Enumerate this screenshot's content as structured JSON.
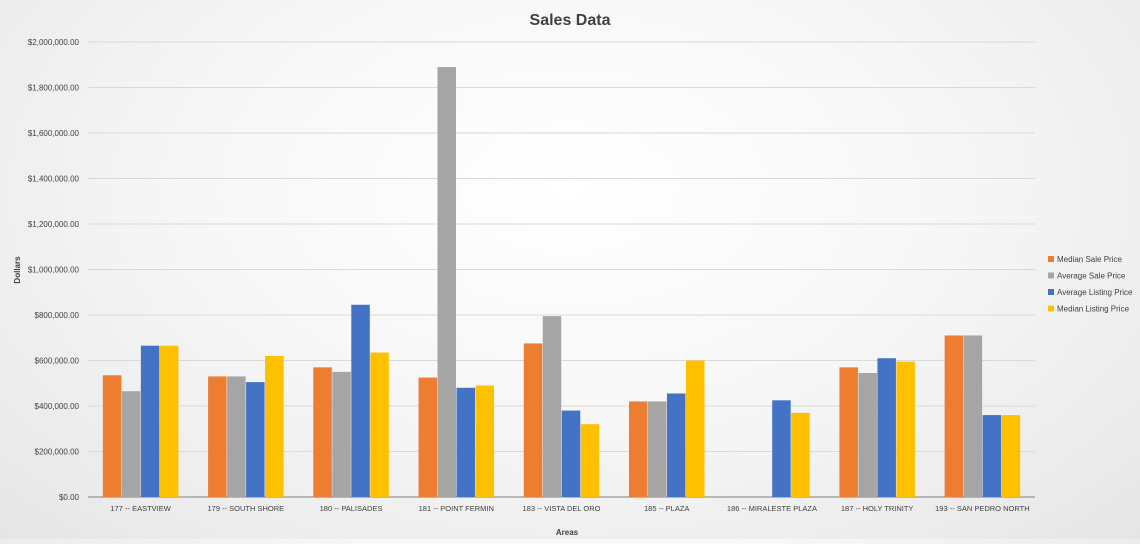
{
  "chart_data": {
    "type": "bar",
    "title": "Sales Data",
    "xlabel": "Areas",
    "ylabel": "Dollars",
    "ylim": [
      0,
      2000000
    ],
    "y_ticks": [
      0,
      200000,
      400000,
      600000,
      800000,
      1000000,
      1200000,
      1400000,
      1600000,
      1800000,
      2000000
    ],
    "y_tick_labels": [
      "$0.00",
      "$200,000.00",
      "$400,000.00",
      "$600,000.00",
      "$800,000.00",
      "$1,000,000.00",
      "$1,200,000.00",
      "$1,400,000.00",
      "$1,600,000.00",
      "$1,800,000.00",
      "$2,000,000.00"
    ],
    "grid": true,
    "legend_position": "right",
    "categories": [
      "177 -- EASTVIEW",
      "179 -- SOUTH SHORE",
      "180 -- PALISADES",
      "181 -- POINT FERMIN",
      "183 -- VISTA DEL ORO",
      "185 -- PLAZA",
      "186 -- MIRALESTE PLAZA",
      "187 -- HOLY TRINITY",
      "193 -- SAN PEDRO NORTH"
    ],
    "series": [
      {
        "name": "Median Sale Price",
        "color": "#ED7D31",
        "values": [
          535000,
          530000,
          570000,
          525000,
          675000,
          420000,
          0,
          570000,
          710000
        ]
      },
      {
        "name": "Average Sale Price",
        "color": "#A5A5A5",
        "values": [
          465000,
          530000,
          550000,
          1890000,
          795000,
          420000,
          0,
          545000,
          710000
        ]
      },
      {
        "name": "Average Listing Price",
        "color": "#4472C4",
        "values": [
          665000,
          505000,
          845000,
          480000,
          380000,
          455000,
          425000,
          610000,
          360000
        ]
      },
      {
        "name": "Median Listing Price",
        "color": "#FFC000",
        "values": [
          665000,
          620000,
          635000,
          490000,
          320000,
          600000,
          370000,
          595000,
          360000
        ]
      }
    ]
  }
}
